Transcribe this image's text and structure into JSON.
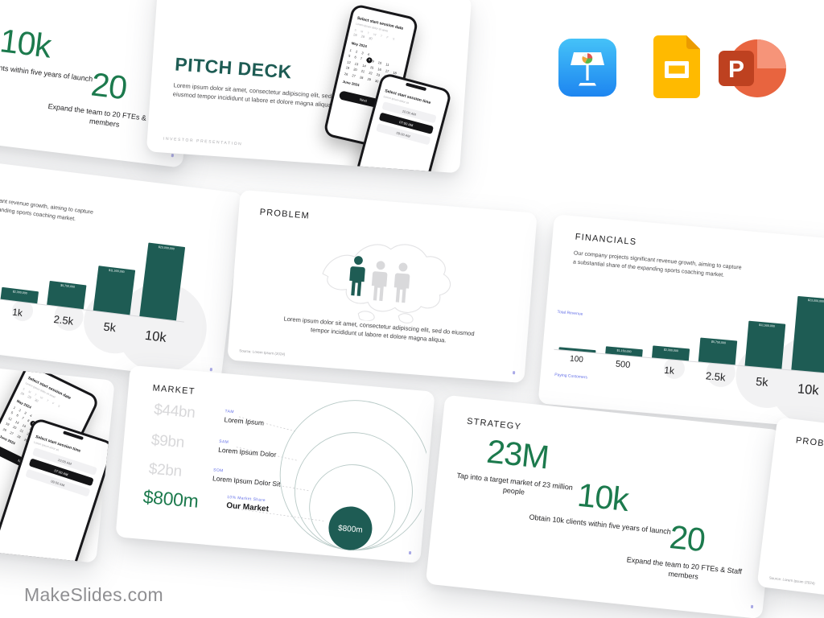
{
  "watermark": "MakeSlides.com",
  "colors": {
    "slide_title_teal": "#1E5C54",
    "stat_green": "#1C7A4D",
    "bar_teal": "#1E5C54",
    "tag_indigo": "#6672E8",
    "muted_value_gray": "#D8D8DA"
  },
  "app_icons": {
    "keynote": "Apple Keynote",
    "google_slides": "Google Slides",
    "powerpoint": "Microsoft PowerPoint",
    "powerpoint_letter": "P"
  },
  "slides": {
    "pitch_deck": {
      "title": "PITCH DECK",
      "body": "Lorem ipsum dolor sit amet, consectetur adipiscing elit, sed do eiusmod tempor incididunt ut labore et dolore magna aliqua",
      "footer": "INVESTOR PRESENTATION"
    },
    "strategy": {
      "title": "STRATEGY",
      "stats": [
        {
          "value": "23M",
          "desc": "Tap into a target market of 23 million people"
        },
        {
          "value": "10k",
          "desc": "Obtain 10k clients within five years of launch"
        },
        {
          "value": "20",
          "desc": "Expand the team to 20 FTEs & Staff members"
        }
      ]
    },
    "problem": {
      "title": "PROBLEM",
      "body": "Lorem ipsum dolor sit amet, consectetur adipiscing elit, sed do eiusmod tempor incididunt ut labore et dolore magna aliqua.",
      "source": "Source: Lorem Ipsum (2024)"
    },
    "market": {
      "title": "MARKET",
      "rows": [
        {
          "value": "$44bn",
          "tag": "TAM",
          "label": "Lorem Ipsum"
        },
        {
          "value": "$9bn",
          "tag": "SAM",
          "label": "Lorem Ipsum Dolor"
        },
        {
          "value": "$2bn",
          "tag": "SOM",
          "label": "Lorem Ipsum Dolor Sit"
        },
        {
          "value": "$800m",
          "tag": "10% Market Share",
          "label": "Our Market"
        }
      ],
      "bubble": "$800m"
    },
    "financials": {
      "title": "FINANCIALS",
      "body": "Our company projects significant revenue growth, aiming to capture a substantial share of the expanding sports coaching market.",
      "y_axis": "Total Revenue",
      "x_axis": "Paying Customers",
      "chart": {
        "type": "bar",
        "categories": [
          "100",
          "500",
          "1k",
          "2.5k",
          "5k",
          "10k"
        ],
        "value_labels": [
          "",
          "$1,150,000",
          "$2,300,000",
          "$5,750,000",
          "$11,500,000",
          "$23,000,000"
        ],
        "heights": [
          3,
          9,
          15,
          30,
          56,
          92
        ]
      }
    }
  },
  "phone_mockups": {
    "date_picker": {
      "header": "Select start session date",
      "sub": "Lorem ipsum dolor sit amet",
      "weekdays": "S M T W T F S",
      "lead_row": "28 29 30",
      "month_top": "May 2024",
      "week1": "1 2 3 4",
      "week2": "5 6 7 8 9 10 11",
      "week3": "12 13 14 15 16 17 18",
      "week4": "19 20 21 22 23 24 25",
      "week5": "26 27 28 29 30 31",
      "selected_day": "8",
      "month_bottom": "June 2024",
      "button": "Next"
    },
    "time_picker": {
      "header": "Select start session time",
      "sub": "Lorem ipsum dolor sit",
      "slot1": "10:00 AM",
      "slot2": "07:00 AM",
      "slot3": "09:00 AM"
    }
  }
}
